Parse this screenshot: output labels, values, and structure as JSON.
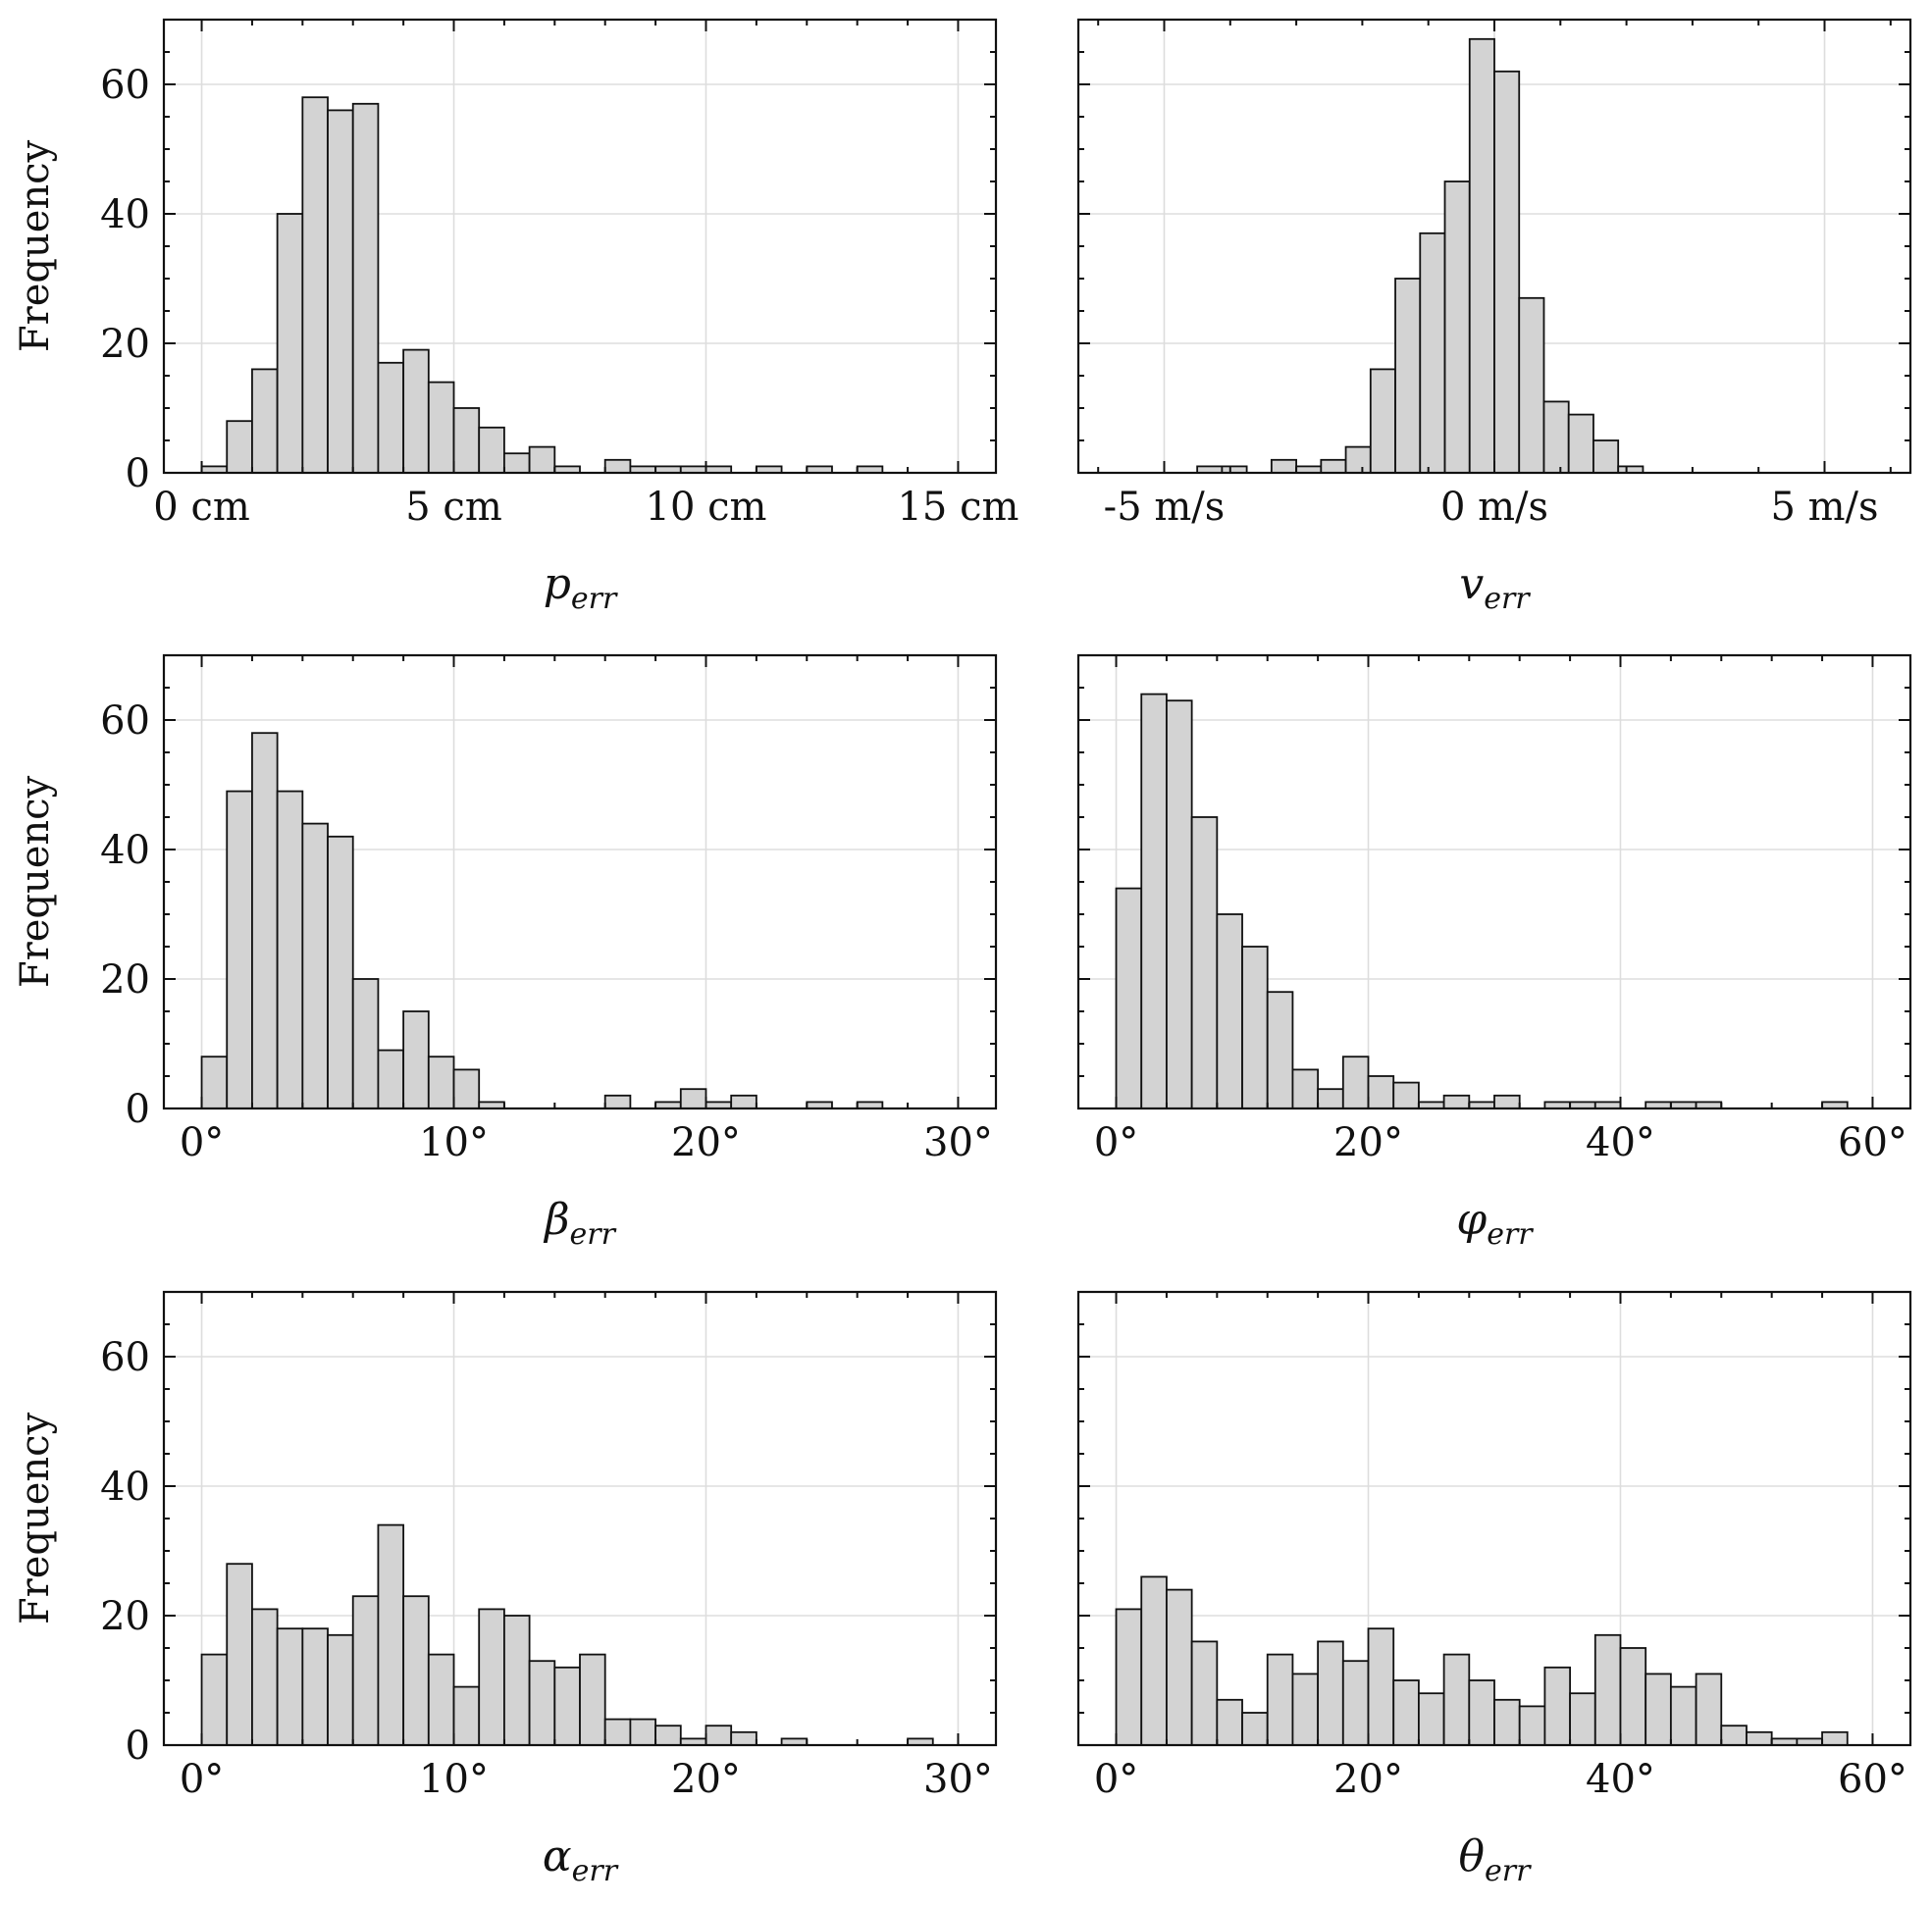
{
  "figure": {
    "ylabel": "Frequency"
  },
  "chart_data": [
    {
      "type": "bar",
      "panel": "position-error",
      "xlabel": {
        "main": "p",
        "sub": "err"
      },
      "ylabel": "Frequency",
      "xlim": [
        -0.75,
        15.75
      ],
      "ylim": [
        0,
        70
      ],
      "xticks": [
        0,
        5,
        10,
        15
      ],
      "xtick_labels": [
        "0 cm",
        "5 cm",
        "10 cm",
        "15 cm"
      ],
      "yticks": [
        0,
        20,
        40,
        60
      ],
      "ytick_labels": [
        "0",
        "20",
        "40",
        "60"
      ],
      "show_y_labels": true,
      "bin_start": 0,
      "bin_width": 0.5,
      "values": [
        1,
        8,
        16,
        40,
        58,
        56,
        57,
        17,
        19,
        14,
        10,
        7,
        3,
        4,
        1,
        0,
        2,
        1,
        1,
        1,
        1,
        0,
        1,
        0,
        1,
        0,
        1,
        0,
        0,
        0
      ]
    },
    {
      "type": "bar",
      "panel": "velocity-error",
      "xlabel": {
        "main": "v",
        "sub": "err"
      },
      "ylabel": "",
      "xlim": [
        -6.3,
        6.3
      ],
      "ylim": [
        0,
        70
      ],
      "xticks": [
        -5,
        0,
        5
      ],
      "xtick_labels": [
        "-5 m/s",
        "0 m/s",
        "5 m/s"
      ],
      "yticks": [
        0,
        20,
        40,
        60
      ],
      "ytick_labels": [
        "0",
        "20",
        "40",
        "60"
      ],
      "show_y_labels": false,
      "bin_start": -4.5,
      "bin_width": 0.375,
      "values": [
        1,
        1,
        0,
        2,
        1,
        2,
        4,
        16,
        30,
        37,
        45,
        67,
        62,
        27,
        11,
        9,
        5,
        1
      ]
    },
    {
      "type": "bar",
      "panel": "beta-error",
      "xlabel": {
        "main": "β",
        "sub": "err"
      },
      "ylabel": "Frequency",
      "xlim": [
        -1.5,
        31.5
      ],
      "ylim": [
        0,
        70
      ],
      "xticks": [
        0,
        10,
        20,
        30
      ],
      "xtick_labels": [
        "0°",
        "10°",
        "20°",
        "30°"
      ],
      "yticks": [
        0,
        20,
        40,
        60
      ],
      "ytick_labels": [
        "0",
        "20",
        "40",
        "60"
      ],
      "show_y_labels": true,
      "bin_start": 0,
      "bin_width": 1,
      "values": [
        8,
        49,
        58,
        49,
        44,
        42,
        20,
        9,
        15,
        8,
        6,
        1,
        0,
        0,
        0,
        0,
        2,
        0,
        1,
        3,
        1,
        2,
        0,
        0,
        1,
        0,
        1,
        0,
        0,
        0
      ]
    },
    {
      "type": "bar",
      "panel": "phi-error",
      "xlabel": {
        "main": "φ",
        "sub": "err"
      },
      "ylabel": "",
      "xlim": [
        -3,
        63
      ],
      "ylim": [
        0,
        70
      ],
      "xticks": [
        0,
        20,
        40,
        60
      ],
      "xtick_labels": [
        "0°",
        "20°",
        "40°",
        "60°"
      ],
      "yticks": [
        0,
        20,
        40,
        60
      ],
      "ytick_labels": [
        "0",
        "20",
        "40",
        "60"
      ],
      "show_y_labels": false,
      "bin_start": 0,
      "bin_width": 2,
      "values": [
        34,
        64,
        63,
        45,
        30,
        25,
        18,
        6,
        3,
        8,
        5,
        4,
        1,
        2,
        1,
        2,
        0,
        1,
        1,
        1,
        0,
        1,
        1,
        1,
        0,
        0,
        0,
        0,
        1,
        0
      ]
    },
    {
      "type": "bar",
      "panel": "alpha-error",
      "xlabel": {
        "main": "α",
        "sub": "err"
      },
      "ylabel": "Frequency",
      "xlim": [
        -1.5,
        31.5
      ],
      "ylim": [
        0,
        70
      ],
      "xticks": [
        0,
        10,
        20,
        30
      ],
      "xtick_labels": [
        "0°",
        "10°",
        "20°",
        "30°"
      ],
      "yticks": [
        0,
        20,
        40,
        60
      ],
      "ytick_labels": [
        "0",
        "20",
        "40",
        "60"
      ],
      "show_y_labels": true,
      "bin_start": 0,
      "bin_width": 1,
      "values": [
        14,
        28,
        21,
        18,
        18,
        17,
        23,
        34,
        23,
        14,
        9,
        21,
        20,
        13,
        12,
        14,
        4,
        4,
        3,
        1,
        3,
        2,
        0,
        1,
        0,
        0,
        0,
        0,
        1,
        0
      ]
    },
    {
      "type": "bar",
      "panel": "theta-error",
      "xlabel": {
        "main": "θ",
        "sub": "err"
      },
      "ylabel": "",
      "xlim": [
        -3,
        63
      ],
      "ylim": [
        0,
        70
      ],
      "xticks": [
        0,
        20,
        40,
        60
      ],
      "xtick_labels": [
        "0°",
        "20°",
        "40°",
        "60°"
      ],
      "yticks": [
        0,
        20,
        40,
        60
      ],
      "ytick_labels": [
        "0",
        "20",
        "40",
        "60"
      ],
      "show_y_labels": false,
      "bin_start": 0,
      "bin_width": 2,
      "values": [
        21,
        26,
        24,
        16,
        7,
        5,
        14,
        11,
        16,
        13,
        18,
        10,
        8,
        14,
        10,
        7,
        6,
        12,
        8,
        17,
        15,
        11,
        9,
        11,
        3,
        2,
        1,
        1,
        2,
        0
      ]
    }
  ]
}
